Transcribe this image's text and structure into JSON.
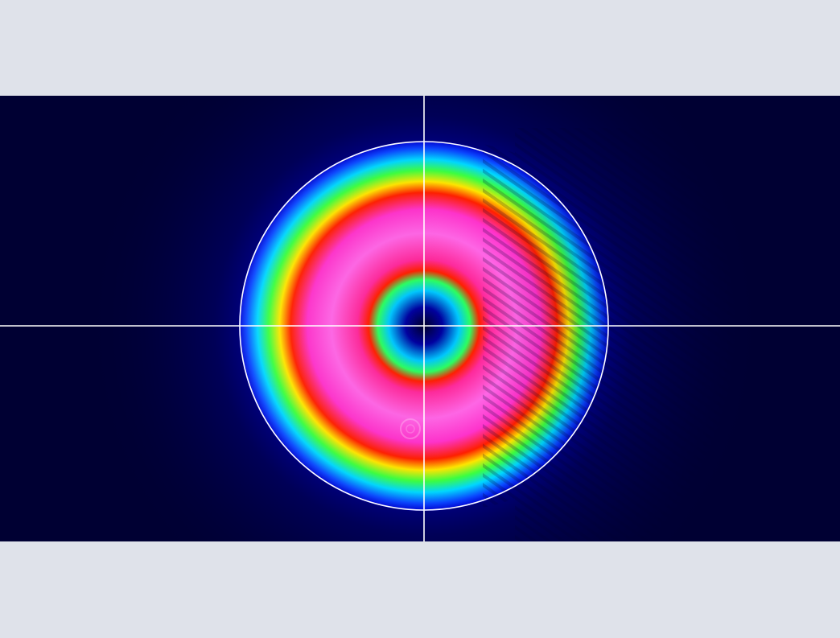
{
  "colors": {
    "surround": "#dfe2ea",
    "background": "#000033",
    "overlay": "#ffffff",
    "palette": [
      "#00002a",
      "#0000b0",
      "#0a44ff",
      "#00d8ff",
      "#00ff66",
      "#7dff00",
      "#ffea00",
      "#ff1f00",
      "#ff2a8a",
      "#ff33cc",
      "#ff6be8"
    ]
  },
  "icons": {
    "crosshair": "crosshair-icon",
    "aperture": "aperture-circle"
  }
}
